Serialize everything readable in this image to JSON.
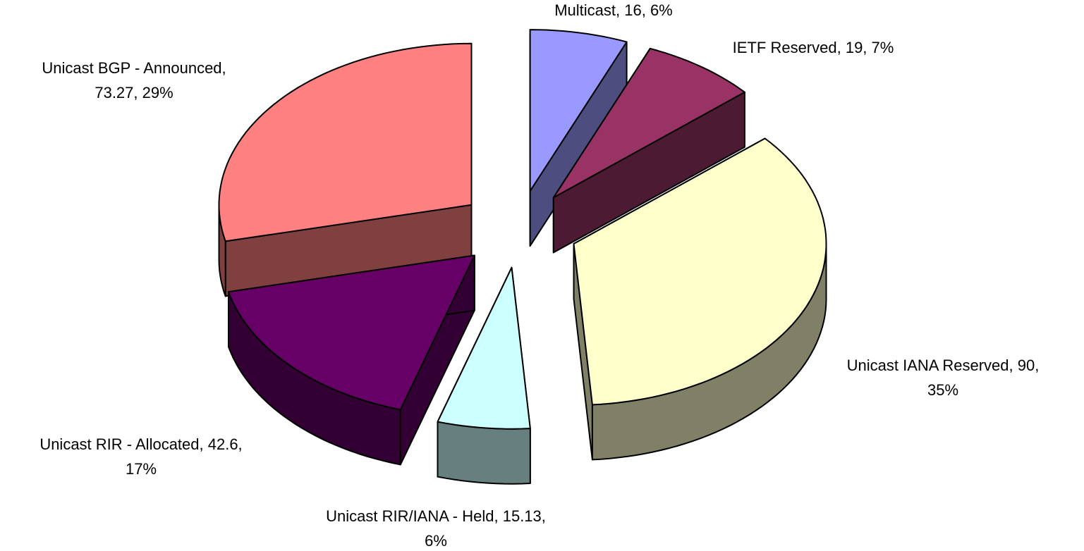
{
  "chart_data": {
    "type": "pie3d",
    "values": [
      16,
      19,
      90,
      15.13,
      42.6,
      73.27
    ],
    "value_labels": [
      [
        "Multicast, 16, 6%"
      ],
      [
        "IETF Reserved, 19, 7%"
      ],
      [
        "Unicast IANA Reserved, 90,",
        "35%"
      ],
      [
        "Unicast RIR/IANA - Held, 15.13,",
        "6%"
      ],
      [
        "Unicast RIR - Allocated, 42.6,",
        "17%"
      ],
      [
        "Unicast BGP - Announced,",
        "73.27, 29%"
      ]
    ],
    "colors": [
      "#9999ff",
      "#993366",
      "#ffffcc",
      "#ccffff",
      "#660066",
      "#ff8080"
    ]
  }
}
